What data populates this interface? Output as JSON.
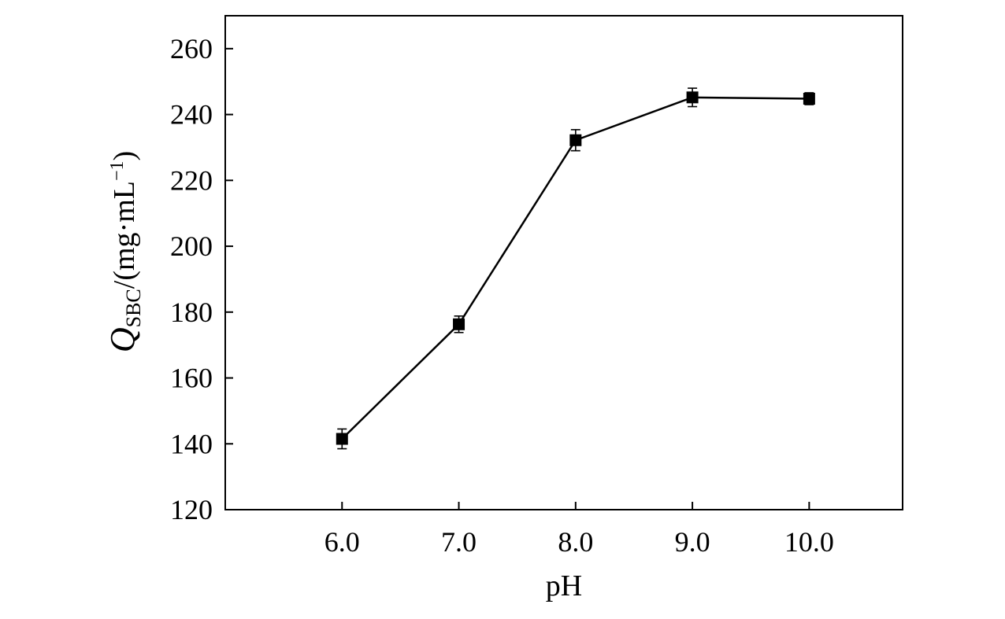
{
  "chart_data": {
    "type": "line",
    "xlabel": "pH",
    "ylabel": {
      "symbol": "Q",
      "subscript": "SBC",
      "unit_prefix": "/(mg·mL",
      "unit_exponent": "−1",
      "unit_suffix": ")"
    },
    "xlim": [
      5.0,
      10.8
    ],
    "ylim": [
      120,
      270
    ],
    "xticks": [
      6.0,
      7.0,
      8.0,
      9.0,
      10.0
    ],
    "xtick_labels": [
      "6.0",
      "7.0",
      "8.0",
      "9.0",
      "10.0"
    ],
    "yticks": [
      120,
      140,
      160,
      180,
      200,
      220,
      240,
      260
    ],
    "ytick_labels": [
      "120",
      "140",
      "160",
      "180",
      "200",
      "220",
      "240",
      "260"
    ],
    "grid": false,
    "series": [
      {
        "marker": "square",
        "color": "#000000",
        "x": [
          6.0,
          7.0,
          8.0,
          9.0,
          10.0
        ],
        "y": [
          141.5,
          176.3,
          232.2,
          245.2,
          244.8
        ],
        "error": [
          3.0,
          2.5,
          3.2,
          2.8,
          1.8
        ]
      }
    ]
  }
}
